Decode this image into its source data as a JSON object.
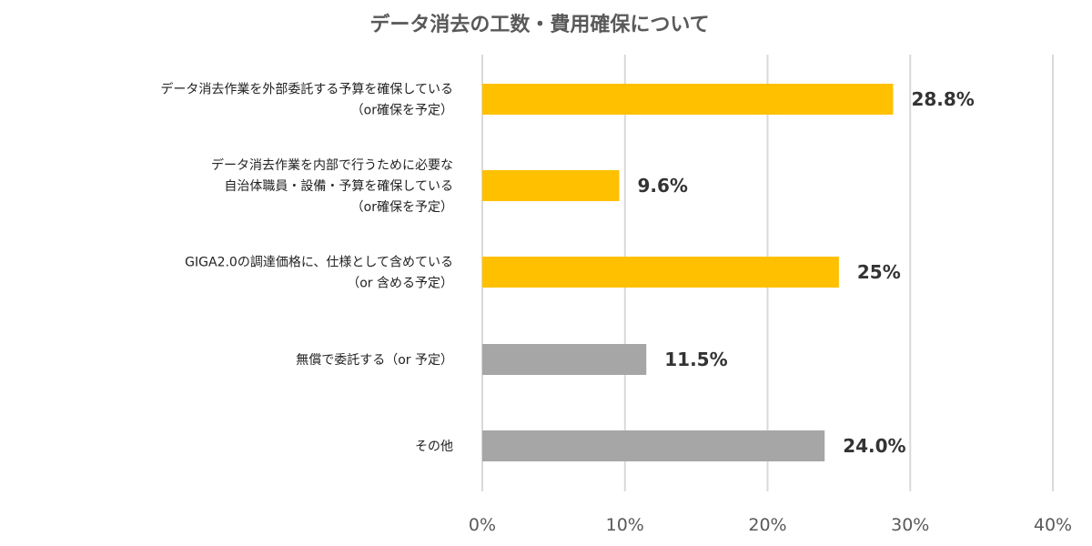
{
  "chart_data": {
    "type": "bar",
    "orientation": "horizontal",
    "title": "データ消去の工数・費用確保について",
    "categories": [
      [
        "データ消去作業を外部委託する予算を確保している",
        "（or確保を予定）"
      ],
      [
        "データ消去作業を内部で行うために必要な",
        "自治体職員・設備・予算を確保している",
        "（or確保を予定）"
      ],
      [
        "GIGA2.0の調達価格に、仕様として含めている",
        "（or 含める予定）"
      ],
      [
        "無償で委託する（or 予定）"
      ],
      [
        "その他"
      ]
    ],
    "values": [
      28.8,
      9.6,
      25,
      11.5,
      24.0
    ],
    "value_labels": [
      "28.8%",
      "9.6%",
      "25%",
      "11.5%",
      "24.0%"
    ],
    "bar_colors": [
      "#FFC000",
      "#FFC000",
      "#FFC000",
      "#A6A6A6",
      "#A6A6A6"
    ],
    "xlim": [
      0,
      40
    ],
    "xticks": [
      0,
      10,
      20,
      30,
      40
    ],
    "xtick_labels": [
      "0%",
      "10%",
      "20%",
      "30%",
      "40%"
    ],
    "grid": true,
    "legend": "none"
  }
}
